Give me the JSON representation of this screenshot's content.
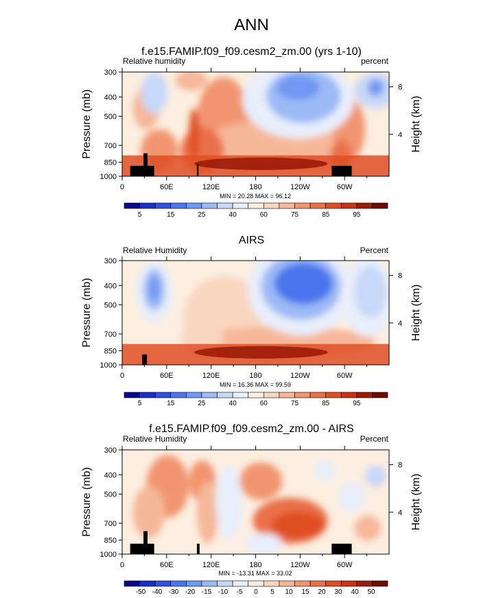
{
  "figure": {
    "title": "ANN"
  },
  "colors": {
    "rh_palette": [
      "#08088c",
      "#1b2fc4",
      "#3050e0",
      "#4a76ec",
      "#6f98f2",
      "#9cbaf6",
      "#c8d8f8",
      "#e8eefa",
      "#fbeee0",
      "#f9d6c0",
      "#f6b799",
      "#f19570",
      "#ea7048",
      "#df4f24",
      "#c63414",
      "#9c1c08",
      "#6e0a04"
    ],
    "diff_palette": [
      "#08088c",
      "#1b2fc4",
      "#3050e0",
      "#4a76ec",
      "#6f98f2",
      "#9cbaf6",
      "#c8d8f8",
      "#e8eefa",
      "#fbeee0",
      "#f9d6c0",
      "#f6b799",
      "#f19570",
      "#ea7048",
      "#df4f24",
      "#c63414",
      "#9c1c08",
      "#6e0a04"
    ],
    "land": "#000000"
  },
  "panels": [
    {
      "subtitle": "f.e15.FAMIP.f09_f09.cesm2_zm.00 (yrs 1-10)",
      "left_label": "Relative humidity",
      "right_label": "percent",
      "min_max": "MIN =  20.28  MAX =  96.12",
      "colorbar_labels": [
        "5",
        "15",
        "25",
        "40",
        "60",
        "75",
        "85",
        "95"
      ]
    },
    {
      "subtitle": "AIRS",
      "left_label": "Relative Humidity",
      "right_label": "Percent",
      "min_max": "MIN =  16.36  MAX =  99.59",
      "colorbar_labels": [
        "5",
        "15",
        "25",
        "40",
        "60",
        "75",
        "85",
        "95"
      ]
    },
    {
      "subtitle": "f.e15.FAMIP.f09_f09.cesm2_zm.00 - AIRS",
      "left_label": "Relative Humidity",
      "right_label": "Percent",
      "min_max": "MIN = -13.31  MAX =  33.02",
      "colorbar_labels": [
        "-50",
        "-40",
        "-30",
        "-20",
        "-15",
        "-10",
        "-5",
        "0",
        "5",
        "10",
        "15",
        "20",
        "30",
        "40",
        "50"
      ]
    }
  ],
  "chart_data": [
    {
      "type": "heatmap",
      "title": "f.e15.FAMIP.f09_f09.cesm2_zm.00 (yrs 1-10)",
      "xlabel": "",
      "ylabel": "Pressure (mb)",
      "y2label": "Height (km)",
      "x_tick_labels": [
        "0",
        "60E",
        "120E",
        "180",
        "120W",
        "60W"
      ],
      "x_ticks_deg": [
        0,
        60,
        120,
        180,
        240,
        300
      ],
      "xlim": [
        0,
        360
      ],
      "y_tick_labels": [
        "300",
        "400",
        "500",
        "700",
        "850",
        "1000"
      ],
      "y_ticks": [
        300,
        400,
        500,
        700,
        850,
        1000
      ],
      "ylim": [
        300,
        1000
      ],
      "y2_tick_labels": [
        "4",
        "8"
      ],
      "y2_ticks": [
        4,
        8
      ],
      "scale": "log",
      "units": "percent",
      "min": 20.28,
      "max": 96.12,
      "levels": [
        5,
        10,
        15,
        20,
        25,
        30,
        40,
        50,
        60,
        65,
        70,
        75,
        80,
        85,
        90,
        95
      ]
    },
    {
      "type": "heatmap",
      "title": "AIRS",
      "xlabel": "",
      "ylabel": "Pressure (mb)",
      "y2label": "Height (km)",
      "x_tick_labels": [
        "0",
        "60E",
        "120E",
        "180",
        "120W",
        "60W"
      ],
      "x_ticks_deg": [
        0,
        60,
        120,
        180,
        240,
        300
      ],
      "xlim": [
        0,
        360
      ],
      "y_tick_labels": [
        "300",
        "400",
        "500",
        "700",
        "850",
        "1000"
      ],
      "y_ticks": [
        300,
        400,
        500,
        700,
        850,
        1000
      ],
      "ylim": [
        300,
        1000
      ],
      "y2_tick_labels": [
        "4",
        "8"
      ],
      "y2_ticks": [
        4,
        8
      ],
      "scale": "log",
      "units": "Percent",
      "min": 16.36,
      "max": 99.59,
      "levels": [
        5,
        10,
        15,
        20,
        25,
        30,
        40,
        50,
        60,
        65,
        70,
        75,
        80,
        85,
        90,
        95
      ]
    },
    {
      "type": "heatmap",
      "title": "f.e15.FAMIP.f09_f09.cesm2_zm.00 - AIRS",
      "xlabel": "",
      "ylabel": "Pressure (mb)",
      "y2label": "Height (km)",
      "x_tick_labels": [
        "0",
        "60E",
        "120E",
        "180",
        "120W",
        "60W"
      ],
      "x_ticks_deg": [
        0,
        60,
        120,
        180,
        240,
        300
      ],
      "xlim": [
        0,
        360
      ],
      "y_tick_labels": [
        "300",
        "400",
        "500",
        "700",
        "850",
        "1000"
      ],
      "y_ticks": [
        300,
        400,
        500,
        700,
        850,
        1000
      ],
      "ylim": [
        300,
        1000
      ],
      "y2_tick_labels": [
        "4",
        "8"
      ],
      "y2_ticks": [
        4,
        8
      ],
      "scale": "log",
      "units": "Percent",
      "min": -13.31,
      "max": 33.02,
      "levels": [
        -50,
        -40,
        -30,
        -20,
        -15,
        -10,
        -5,
        0,
        5,
        10,
        15,
        20,
        30,
        40,
        50
      ]
    }
  ]
}
